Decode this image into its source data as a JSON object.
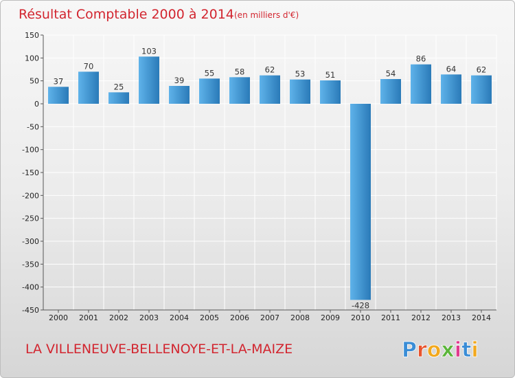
{
  "chart_data": {
    "type": "bar",
    "title": "Résultat Comptable 2000 à 2014",
    "subtitle": "(en milliers d'€)",
    "xlabel": "",
    "ylabel": "",
    "ylim": [
      -450,
      150
    ],
    "yticks": [
      150,
      100,
      50,
      0,
      -50,
      -100,
      -150,
      -200,
      -250,
      -300,
      -350,
      -400,
      -450
    ],
    "grid": true,
    "categories": [
      "2000",
      "2001",
      "2002",
      "2003",
      "2004",
      "2005",
      "2006",
      "2007",
      "2008",
      "2009",
      "2010",
      "2011",
      "2012",
      "2013",
      "2014"
    ],
    "values": [
      37,
      70,
      25,
      103,
      39,
      55,
      58,
      62,
      53,
      51,
      -428,
      54,
      86,
      64,
      62
    ]
  },
  "footer": {
    "town": "LA VILLENEUVE-BELLENOYE-ET-LA-MAIZE",
    "logo_text": "Proxiti"
  },
  "colors": {
    "bar_light": "#5fb3ea",
    "bar_dark": "#2a7ab8",
    "title": "#d2252f",
    "grid": "#ffffff",
    "logo": [
      "#3a8dd6",
      "#e8542e",
      "#f2a81d",
      "#5bb53a",
      "#e03a8e",
      "#3a8dd6",
      "#f2a81d"
    ]
  }
}
